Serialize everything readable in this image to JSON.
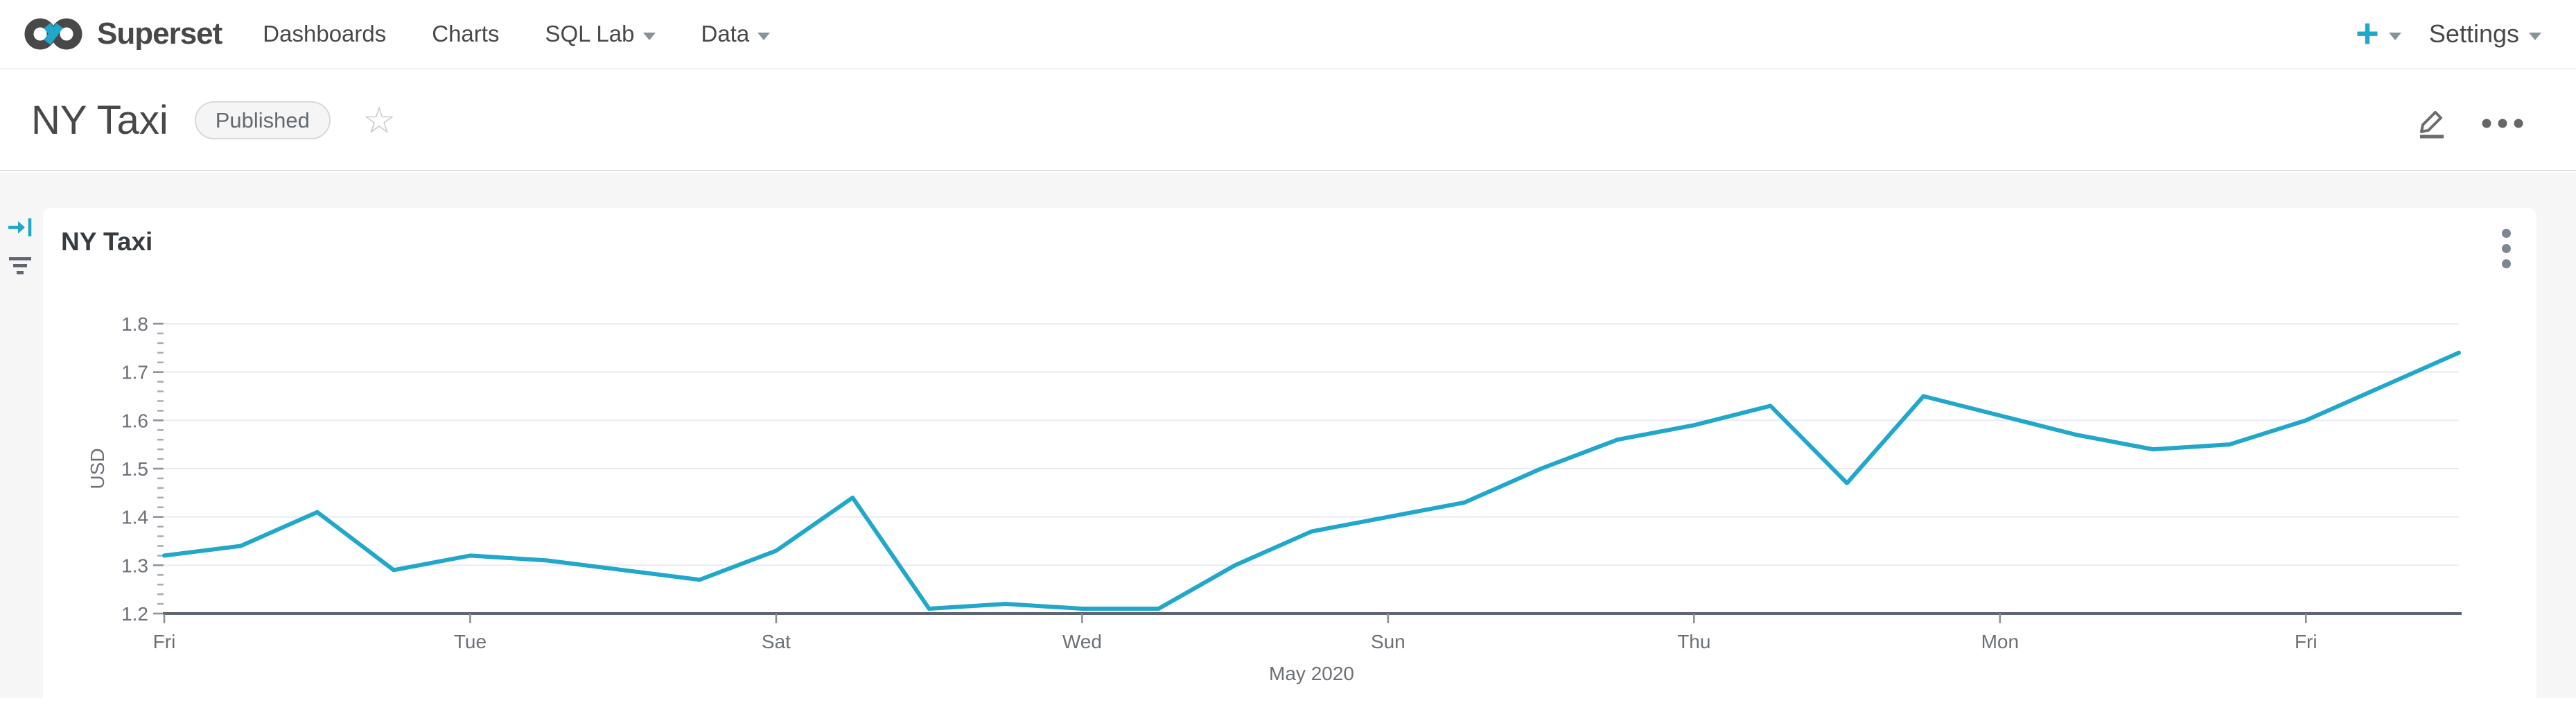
{
  "navbar": {
    "brand": "Superset",
    "items": [
      {
        "label": "Dashboards",
        "caret": false
      },
      {
        "label": "Charts",
        "caret": false
      },
      {
        "label": "SQL Lab",
        "caret": true
      },
      {
        "label": "Data",
        "caret": true
      }
    ],
    "plus_label": "+",
    "settings_label": "Settings"
  },
  "dashboard_header": {
    "title": "NY Taxi",
    "status_badge": "Published",
    "favorite_icon": "star-outline",
    "actions": [
      "edit-pencil",
      "more-ellipsis"
    ]
  },
  "side_rail": {
    "expand_filters_icon": "arrow-to-bar",
    "filter_icon": "filter-list"
  },
  "chart_card": {
    "title": "NY Taxi",
    "menu_icon": "kebab-vertical"
  },
  "colors": {
    "accent_teal": "#20A7C9",
    "line": "#20A7C9",
    "gridline": "#e8ebf4",
    "axis_line": "#5d6671",
    "axis_text": "#6b7077",
    "page_bg": "#f6f6f6",
    "kebab_gray": "#7d8793"
  },
  "chart_data": {
    "type": "line",
    "title": "NY Taxi",
    "xlabel": "May 2020",
    "ylabel": "USD",
    "ylim": [
      1.2,
      1.8
    ],
    "y_ticks": [
      1.2,
      1.3,
      1.4,
      1.5,
      1.6,
      1.7,
      1.8
    ],
    "grid": "horizontal-only",
    "legend": "none",
    "x_unit": "day of May 2020 (daily series, May 1 = Friday)",
    "x": [
      1,
      2,
      3,
      4,
      5,
      6,
      7,
      8,
      9,
      10,
      11,
      12,
      13,
      14,
      15,
      16,
      17,
      18,
      19,
      20,
      21,
      22,
      23,
      24,
      25,
      26,
      27,
      28,
      29,
      30,
      31
    ],
    "x_tick_days": [
      1,
      5,
      9,
      13,
      17,
      21,
      25,
      29
    ],
    "x_tick_labels": [
      "Fri",
      "Tue",
      "Sat",
      "Wed",
      "Sun",
      "Thu",
      "Mon",
      "Fri"
    ],
    "series": [
      {
        "name": "USD",
        "color": "#20A7C9",
        "values": [
          1.32,
          1.34,
          1.41,
          1.29,
          1.32,
          1.31,
          1.29,
          1.27,
          1.33,
          1.44,
          1.21,
          1.22,
          1.21,
          1.21,
          1.3,
          1.37,
          1.4,
          1.43,
          1.5,
          1.56,
          1.59,
          1.63,
          1.47,
          1.65,
          1.61,
          1.57,
          1.54,
          1.55,
          1.6,
          1.67,
          1.74
        ]
      }
    ]
  }
}
